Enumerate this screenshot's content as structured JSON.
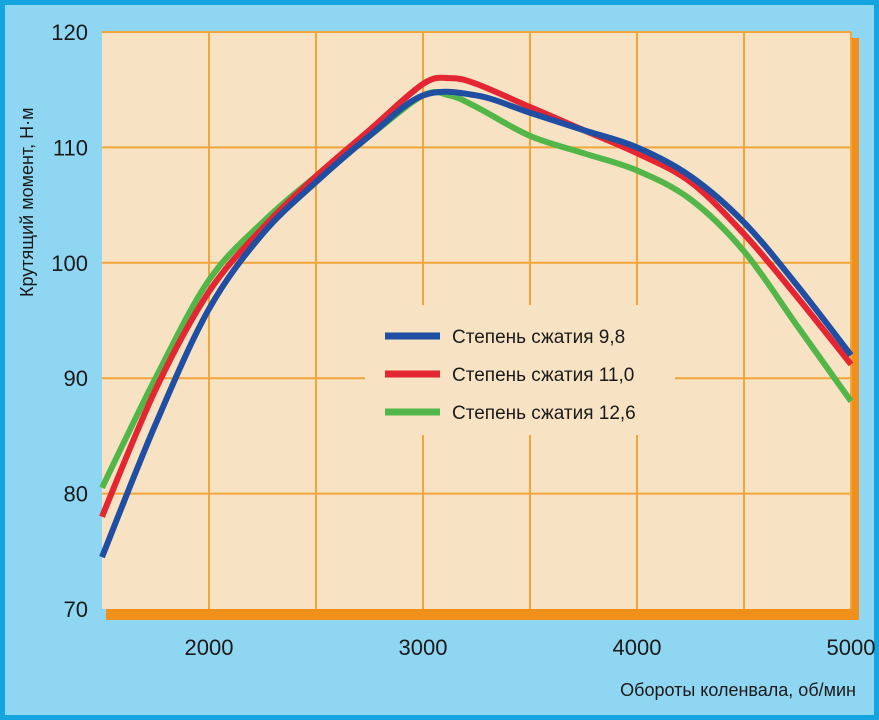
{
  "chart_data": {
    "type": "line",
    "title": "",
    "xlabel": "Обороты коленвала, об/мин",
    "ylabel": "Крутящий момент, Н·м",
    "xlim": [
      1500,
      5000
    ],
    "ylim": [
      70,
      120
    ],
    "xticks": [
      2000,
      3000,
      4000,
      5000
    ],
    "yticks": [
      70,
      80,
      90,
      100,
      110,
      120
    ],
    "x_gridlines": [
      2000,
      2500,
      3000,
      3500,
      4000,
      4500,
      5000
    ],
    "grid": true,
    "legend_position": "center",
    "series": [
      {
        "name": "Степень сжатия 9,8",
        "color": "#1f4ea3",
        "x": [
          1500,
          1750,
          2000,
          2250,
          2500,
          2750,
          3000,
          3250,
          3500,
          3750,
          4000,
          4250,
          4500,
          4750,
          5000
        ],
        "y": [
          74.5,
          86,
          96,
          102.5,
          107,
          111,
          114.5,
          114.5,
          113,
          111.5,
          110,
          107.5,
          103.5,
          98,
          92
        ]
      },
      {
        "name": "Степень сжатия 11,0",
        "color": "#e32631",
        "x": [
          1500,
          1750,
          2000,
          2250,
          2500,
          2750,
          3000,
          3125,
          3250,
          3500,
          3750,
          4000,
          4250,
          4500,
          4750,
          5000
        ],
        "y": [
          78,
          89,
          97.5,
          103,
          107.5,
          111.5,
          115.5,
          116,
          115.5,
          113.5,
          111.5,
          109.5,
          107,
          102.5,
          97,
          91.2
        ]
      },
      {
        "name": "Степень сжатия 12,6",
        "color": "#52b748",
        "x": [
          1500,
          1750,
          2000,
          2250,
          2500,
          2750,
          3000,
          3125,
          3250,
          3500,
          3750,
          4000,
          4250,
          4500,
          4750,
          5000
        ],
        "y": [
          80.5,
          90,
          98.5,
          103.5,
          107.5,
          111,
          114.5,
          114.5,
          113.5,
          111,
          109.5,
          108,
          105.5,
          101,
          94.5,
          88
        ]
      }
    ]
  }
}
